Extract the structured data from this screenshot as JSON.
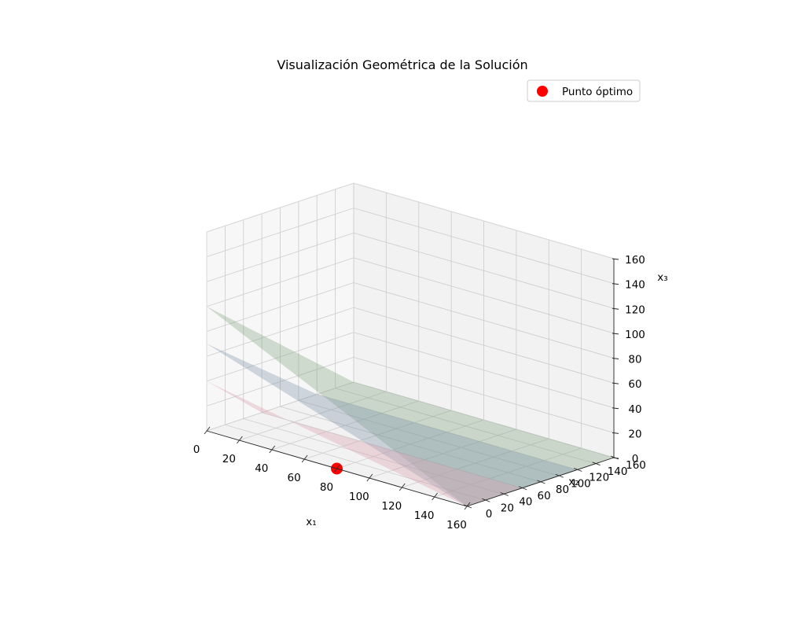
{
  "chart_data": {
    "type": "3d-surface",
    "title": "Visualización Geométrica de la Solución",
    "xlabel": "x₁",
    "ylabel": "x₂",
    "zlabel": "x₃",
    "xlim": [
      0,
      160
    ],
    "ylim": [
      0,
      160
    ],
    "zlim": [
      0,
      160
    ],
    "xticks": [
      "0",
      "20",
      "40",
      "60",
      "80",
      "100",
      "120",
      "140",
      "160"
    ],
    "yticks": [
      "0",
      "20",
      "40",
      "60",
      "80",
      "100",
      "120",
      "140",
      "160"
    ],
    "zticks": [
      "0",
      "20",
      "40",
      "60",
      "80",
      "100",
      "120",
      "140",
      "160"
    ],
    "grid": true,
    "legend_position": "top-right",
    "surfaces": [
      {
        "color": "#7fa37f",
        "opacity": 0.35,
        "corners": [
          [
            0,
            0,
            100
          ],
          [
            0,
            160,
            0
          ],
          [
            160,
            160,
            0
          ],
          [
            160,
            0,
            0
          ]
        ]
      },
      {
        "color": "#7f93a8",
        "opacity": 0.35,
        "corners": [
          [
            0,
            0,
            70
          ],
          [
            0,
            120,
            0
          ],
          [
            160,
            120,
            0
          ],
          [
            160,
            0,
            0
          ]
        ]
      },
      {
        "color": "#d9a3b0",
        "opacity": 0.38,
        "corners": [
          [
            0,
            0,
            40
          ],
          [
            0,
            60,
            0
          ],
          [
            160,
            60,
            0
          ],
          [
            160,
            0,
            0
          ]
        ]
      }
    ],
    "series": [
      {
        "name": "Punto óptimo",
        "type": "scatter",
        "color": "#ff0000",
        "points": [
          [
            80,
            0,
            0
          ]
        ]
      }
    ]
  }
}
